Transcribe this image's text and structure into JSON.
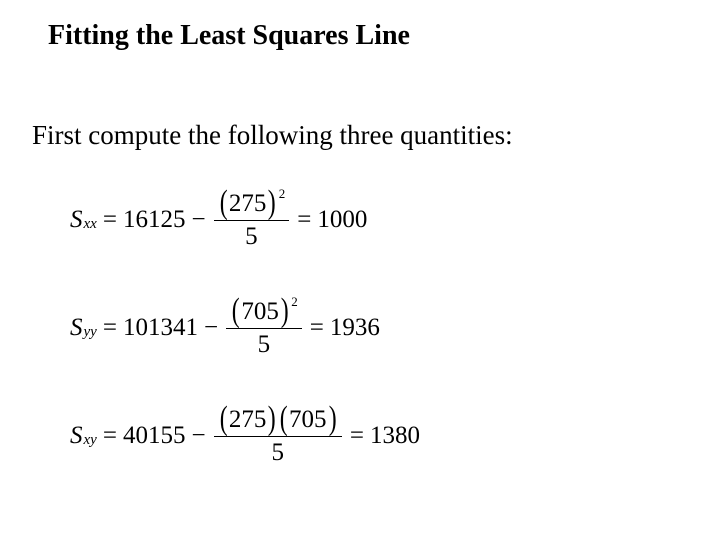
{
  "title": "Fitting the Least Squares Line",
  "subtitle": "First compute the following three quantities:",
  "equations": {
    "sxx": {
      "symbol": "S",
      "subscript": "xx",
      "first_term": "16125",
      "paren_value": "275",
      "exponent": "2",
      "denominator": "5",
      "result": "1000"
    },
    "syy": {
      "symbol": "S",
      "subscript": "yy",
      "first_term": "101341",
      "paren_value": "705",
      "exponent": "2",
      "denominator": "5",
      "result": "1936"
    },
    "sxy": {
      "symbol": "S",
      "subscript": "xy",
      "first_term": "40155",
      "paren1_value": "275",
      "paren2_value": "705",
      "denominator": "5",
      "result": "1380"
    }
  },
  "ops": {
    "eq": "=",
    "minus": "−",
    "lp": "(",
    "rp": ")"
  }
}
